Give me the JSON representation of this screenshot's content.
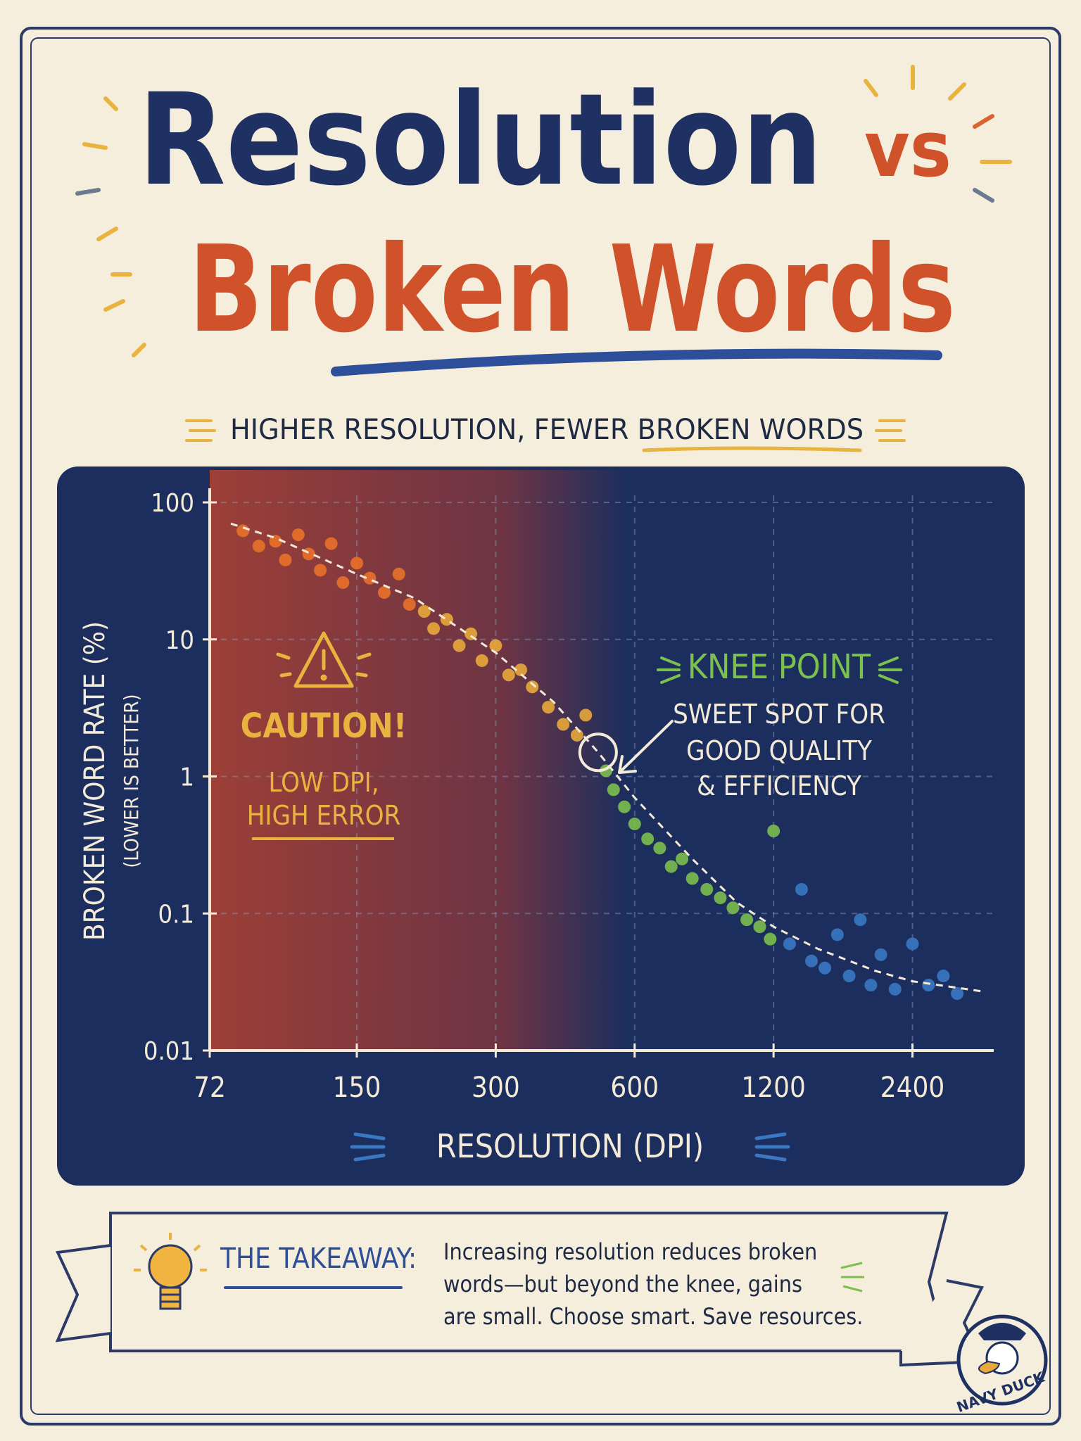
{
  "header": {
    "title_line1": "Resolution",
    "title_vs": "vs",
    "title_line2": "Broken Words",
    "subtitle": "HIGHER RESOLUTION, FEWER BROKEN WORDS"
  },
  "chart_data": {
    "type": "scatter",
    "x_label": "RESOLUTION (DPI)",
    "y_label": "BROKEN WORD RATE (%)",
    "y_sublabel": "(LOWER IS BETTER)",
    "x_scale": "log",
    "y_scale": "log",
    "xlim": [
      72,
      3600
    ],
    "ylim": [
      0.01,
      100
    ],
    "xticks": [
      72,
      150,
      300,
      600,
      1200,
      2400
    ],
    "yticks": [
      100,
      10,
      1,
      0.1,
      0.01
    ],
    "grid": true,
    "series": [
      {
        "color": "#e8712a",
        "x": [
          85,
          92,
          100,
          105,
          112,
          118,
          125,
          132,
          140,
          150,
          160,
          172,
          185,
          195
        ],
        "values": [
          62,
          48,
          52,
          38,
          58,
          42,
          32,
          50,
          26,
          36,
          28,
          22,
          30,
          18
        ]
      },
      {
        "color": "#e8a83a",
        "x": [
          210,
          220,
          235,
          250,
          265,
          280,
          300,
          320,
          340,
          360,
          390,
          420,
          450,
          470
        ],
        "values": [
          16,
          12,
          14,
          9,
          11,
          7,
          9,
          5.5,
          6,
          4.5,
          3.2,
          2.4,
          2,
          2.8
        ]
      },
      {
        "color": "#7cbf4e",
        "x": [
          520,
          540,
          570,
          600,
          640,
          680,
          720,
          760,
          800,
          860,
          920,
          980,
          1050,
          1120,
          1200,
          1180
        ],
        "values": [
          1.1,
          0.8,
          0.6,
          0.45,
          0.35,
          0.3,
          0.22,
          0.25,
          0.18,
          0.15,
          0.13,
          0.11,
          0.09,
          0.08,
          0.4,
          0.065
        ]
      },
      {
        "color": "#3a78c2",
        "x": [
          1300,
          1380,
          1450,
          1550,
          1650,
          1750,
          1850,
          1950,
          2050,
          2200,
          2400,
          2600,
          2800,
          3000
        ],
        "values": [
          0.06,
          0.15,
          0.045,
          0.04,
          0.07,
          0.035,
          0.09,
          0.03,
          0.05,
          0.028,
          0.06,
          0.03,
          0.035,
          0.026
        ]
      }
    ],
    "trend": {
      "color": "#f3ead8",
      "x": [
        80,
        100,
        150,
        200,
        300,
        400,
        500,
        600,
        800,
        1000,
        1200,
        1500,
        2000,
        2400,
        3400
      ],
      "values": [
        70,
        55,
        30,
        20,
        8,
        3.5,
        1.5,
        0.7,
        0.25,
        0.12,
        0.08,
        0.055,
        0.038,
        0.032,
        0.027
      ]
    },
    "knee_point": {
      "x": 500,
      "y": 1.5
    },
    "caution_region_xlim": [
      72,
      380
    ],
    "annotations": {
      "caution_title": "CAUTION!",
      "caution_lines": [
        "LOW DPI,",
        "HIGH ERROR"
      ],
      "knee_title": "KNEE POINT",
      "knee_lines": [
        "SWEET SPOT FOR",
        "GOOD QUALITY",
        "& EFFICIENCY"
      ]
    }
  },
  "takeaway": {
    "label": "THE TAKEAWAY:",
    "lines": [
      "Increasing resolution reduces broken",
      "words—but beyond the knee, gains",
      "are small. Choose smart. Save resources."
    ]
  },
  "logo": {
    "text": "NAVY DUCK"
  }
}
